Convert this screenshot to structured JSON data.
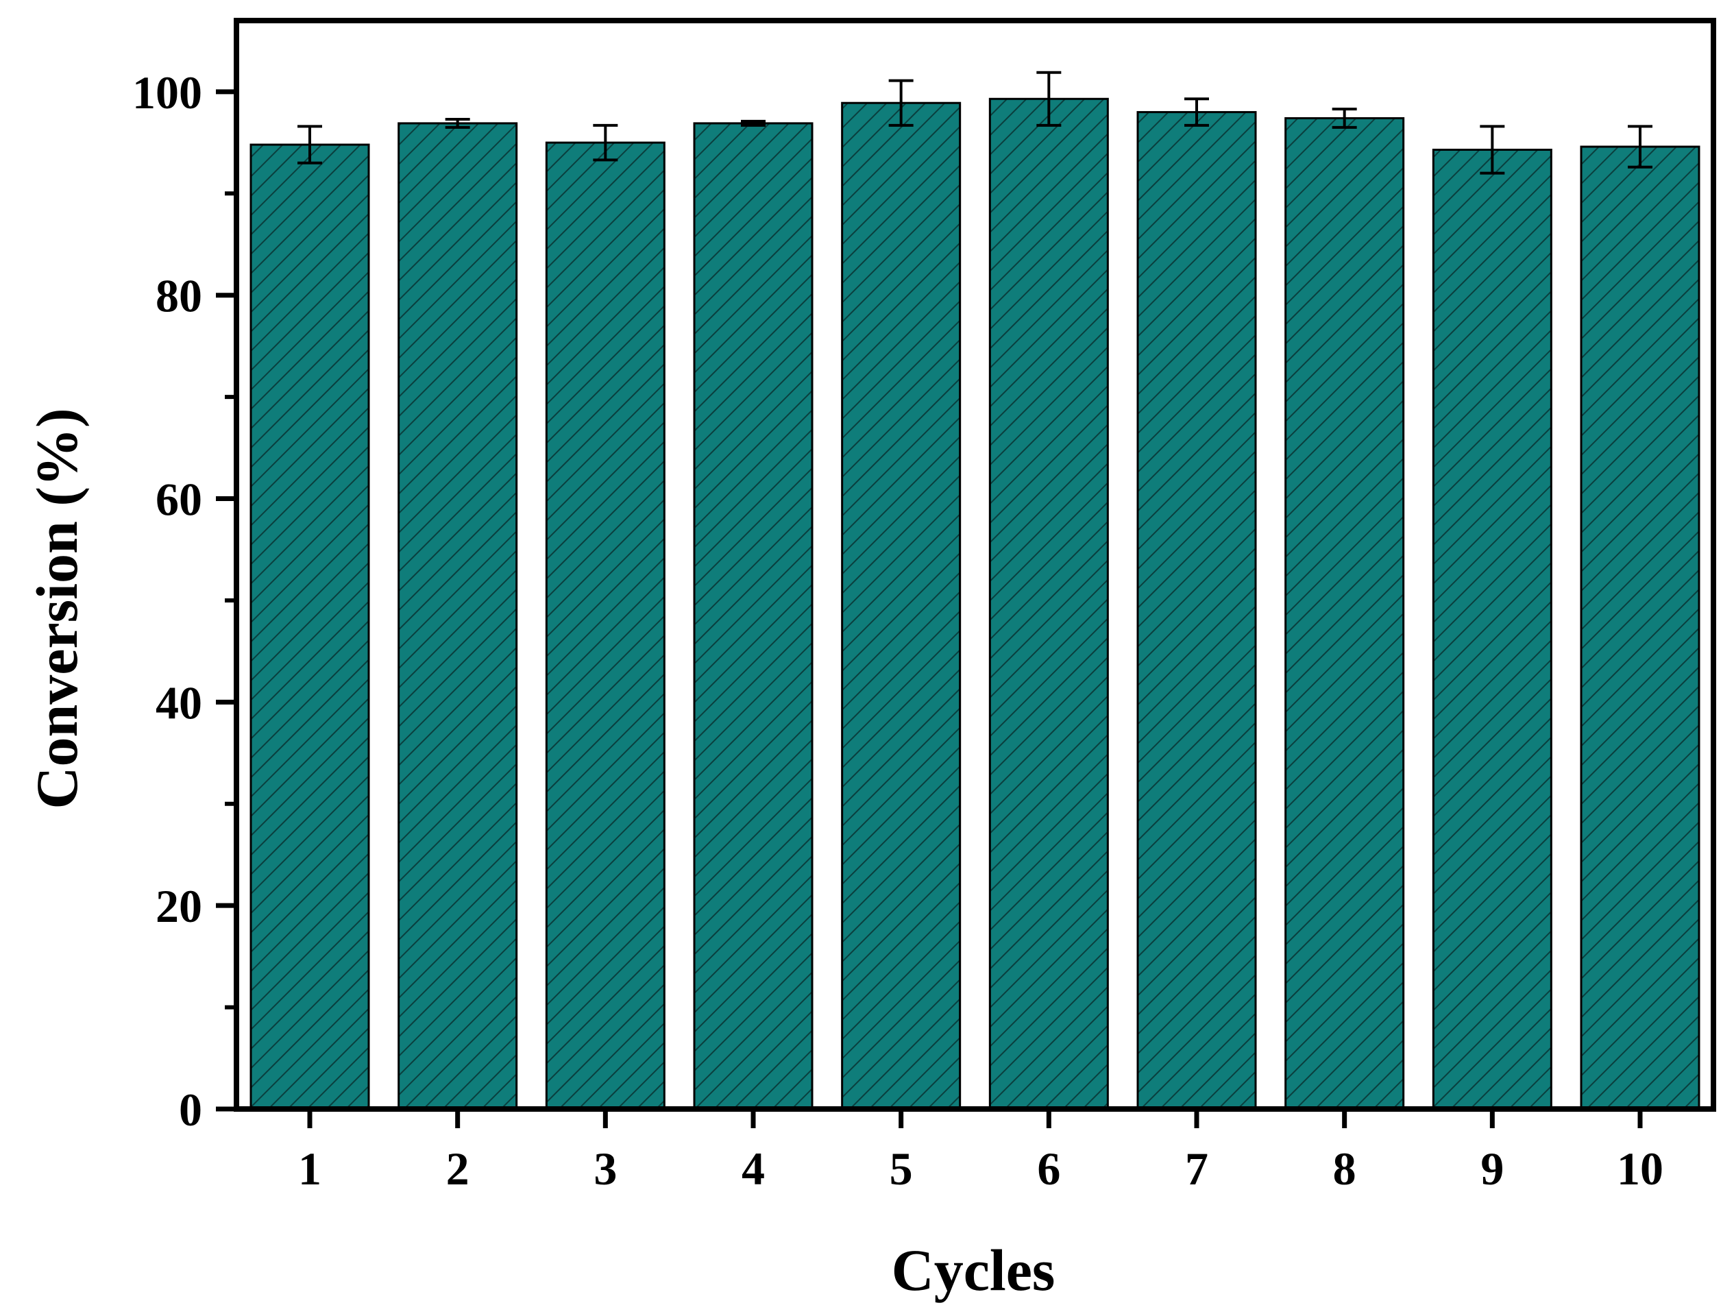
{
  "chart_data": {
    "type": "bar",
    "xlabel": "Cycles",
    "ylabel": "Conversion (%)",
    "categories": [
      "1",
      "2",
      "3",
      "4",
      "5",
      "6",
      "7",
      "8",
      "9",
      "10"
    ],
    "values": [
      94.8,
      96.9,
      95.0,
      96.9,
      98.9,
      99.3,
      98.0,
      97.4,
      94.3,
      94.6
    ],
    "errors": [
      1.8,
      0.4,
      1.7,
      0.2,
      2.2,
      2.6,
      1.3,
      0.9,
      2.3,
      2.0
    ],
    "ylim": [
      0,
      107
    ],
    "yticks": [
      "0",
      "20",
      "40",
      "60",
      "80",
      "100"
    ],
    "bar_color": "#0f7d7a",
    "hatch": "diagonal lines",
    "grid": false
  }
}
